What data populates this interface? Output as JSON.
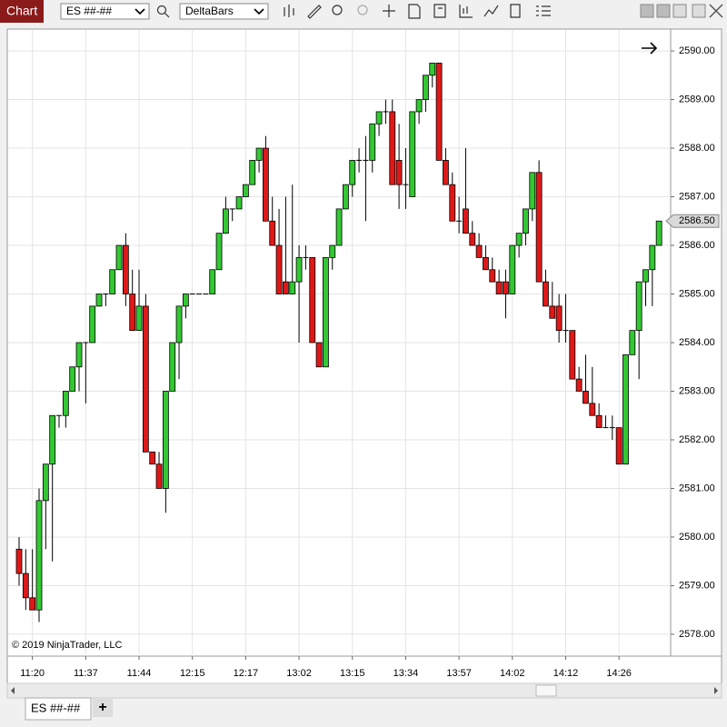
{
  "ui": {
    "window_title": "Chart",
    "instrument": "ES ##-##",
    "bar_type": "DeltaBars",
    "copyright": "© 2019 NinjaTrader, LLC",
    "tab": "ES ##-##",
    "add_tab": "+"
  },
  "chart_data": {
    "type": "candlestick",
    "categories": [
      null,
      null,
      "11:20",
      null,
      null,
      null,
      null,
      null,
      null,
      null,
      "11:37",
      null,
      null,
      null,
      null,
      null,
      null,
      null,
      "11:44",
      null,
      null,
      null,
      null,
      null,
      null,
      null,
      "12:15",
      null,
      null,
      null,
      null,
      null,
      null,
      null,
      "12:17",
      null,
      null,
      null,
      null,
      null,
      null,
      null,
      "13:02",
      null,
      null,
      null,
      null,
      null,
      null,
      null,
      "13:15",
      null,
      null,
      null,
      null,
      null,
      null,
      null,
      "13:34",
      null,
      null,
      null,
      null,
      null,
      null,
      null,
      "13:57",
      null,
      null,
      null,
      null,
      null,
      null,
      null,
      "14:02",
      null,
      null,
      null,
      null,
      null,
      null,
      null,
      "14:12",
      null,
      null,
      null,
      null,
      null,
      null,
      null,
      "14:26",
      null,
      null,
      null,
      null,
      null,
      null
    ],
    "open": [
      2579.75,
      2579.25,
      2578.75,
      2578.5,
      2580.75,
      2581.5,
      2582.5,
      2582.5,
      2583.0,
      2583.5,
      2584.0,
      2584.0,
      2584.75,
      2585.0,
      2585.0,
      2585.5,
      2586.0,
      2585.0,
      2584.25,
      2584.75,
      2581.75,
      2581.5,
      2581.0,
      2583.0,
      2584.0,
      2584.75,
      2585.0,
      2585.0,
      2585.0,
      2585.0,
      2585.5,
      2586.25,
      2586.75,
      2586.75,
      2587.0,
      2587.25,
      2587.75,
      2588.0,
      2586.5,
      2586.0,
      2585.25,
      2585.0,
      2585.25,
      2585.75,
      2585.75,
      2584.0,
      2583.5,
      2585.75,
      2586.0,
      2586.75,
      2587.25,
      2587.75,
      2587.75,
      2587.75,
      2588.5,
      2588.75,
      2588.75,
      2587.75,
      2587.25,
      2587.0,
      2588.75,
      2589.0,
      2589.5,
      2589.75,
      2587.75,
      2587.25,
      2586.5,
      2586.75,
      2586.25,
      2586.0,
      2585.75,
      2585.5,
      2585.25,
      2585.25,
      2585.0,
      2586.0,
      2586.25,
      2586.75,
      2587.5,
      2585.25,
      2584.75,
      2584.75,
      2584.25,
      2584.25,
      2583.25,
      2583.0,
      2582.75,
      2582.5,
      2582.25,
      2582.25,
      2582.25,
      2581.5,
      2583.75,
      2584.25,
      2585.25,
      2585.5,
      2586.0
    ],
    "high": [
      2580.0,
      2579.75,
      2579.75,
      2581.0,
      2581.5,
      2582.5,
      2582.5,
      2583.0,
      2583.5,
      2584.0,
      2584.0,
      2584.75,
      2585.0,
      2585.0,
      2585.5,
      2586.0,
      2586.25,
      2585.5,
      2585.5,
      2585.0,
      2581.75,
      2581.75,
      2583.0,
      2584.0,
      2584.75,
      2585.0,
      2585.0,
      2585.0,
      2585.0,
      2585.5,
      2586.25,
      2587.0,
      2586.75,
      2587.0,
      2587.25,
      2587.75,
      2588.0,
      2588.25,
      2587.0,
      2586.75,
      2587.0,
      2587.25,
      2586.0,
      2586.0,
      2585.75,
      2584.0,
      2585.75,
      2586.0,
      2586.75,
      2587.25,
      2587.75,
      2588.0,
      2588.25,
      2588.5,
      2588.75,
      2589.0,
      2589.0,
      2588.5,
      2588.0,
      2588.75,
      2589.0,
      2589.5,
      2589.75,
      2589.75,
      2588.0,
      2587.5,
      2587.0,
      2588.0,
      2586.5,
      2586.25,
      2586.0,
      2585.75,
      2585.5,
      2585.5,
      2586.0,
      2586.25,
      2586.75,
      2587.5,
      2587.75,
      2585.5,
      2585.25,
      2585.0,
      2585.0,
      2584.25,
      2583.5,
      2583.75,
      2583.5,
      2582.75,
      2582.5,
      2582.5,
      2582.25,
      2583.75,
      2584.25,
      2585.25,
      2585.5,
      2586.0,
      2586.5
    ],
    "low": [
      2579.0,
      2578.5,
      2578.5,
      2578.25,
      2579.75,
      2579.5,
      2582.25,
      2582.25,
      2583.0,
      2583.0,
      2582.75,
      2584.0,
      2584.75,
      2584.75,
      2585.0,
      2585.5,
      2584.75,
      2584.25,
      2584.25,
      2581.75,
      2581.5,
      2581.0,
      2580.5,
      2583.0,
      2583.25,
      2584.5,
      2585.0,
      2585.0,
      2585.0,
      2585.0,
      2585.5,
      2586.25,
      2586.5,
      2586.75,
      2587.0,
      2587.25,
      2587.5,
      2586.5,
      2586.0,
      2585.0,
      2585.0,
      2585.0,
      2584.0,
      2585.5,
      2584.0,
      2583.5,
      2583.5,
      2585.5,
      2586.0,
      2586.75,
      2587.0,
      2587.5,
      2586.5,
      2587.5,
      2588.25,
      2588.5,
      2587.25,
      2586.75,
      2586.75,
      2587.0,
      2588.5,
      2588.75,
      2589.25,
      2587.75,
      2587.25,
      2586.5,
      2586.25,
      2586.25,
      2586.0,
      2585.75,
      2585.5,
      2585.25,
      2585.0,
      2584.5,
      2585.0,
      2585.75,
      2586.0,
      2586.5,
      2585.25,
      2584.75,
      2584.5,
      2584.0,
      2584.0,
      2583.25,
      2583.0,
      2582.75,
      2582.5,
      2582.25,
      2582.25,
      2582.0,
      2581.5,
      2581.5,
      2583.75,
      2583.25,
      2584.75,
      2584.75,
      2586.0
    ],
    "close": [
      2579.25,
      2578.75,
      2578.5,
      2580.75,
      2581.5,
      2582.5,
      2582.5,
      2583.0,
      2583.5,
      2584.0,
      2584.0,
      2584.75,
      2585.0,
      2585.0,
      2585.5,
      2586.0,
      2585.0,
      2584.25,
      2584.75,
      2581.75,
      2581.5,
      2581.0,
      2583.0,
      2584.0,
      2584.75,
      2585.0,
      2585.0,
      2585.0,
      2585.0,
      2585.5,
      2586.25,
      2586.75,
      2586.75,
      2587.0,
      2587.25,
      2587.75,
      2588.0,
      2586.5,
      2586.0,
      2585.0,
      2585.0,
      2585.25,
      2585.75,
      2585.75,
      2584.0,
      2583.5,
      2585.75,
      2586.0,
      2586.75,
      2587.25,
      2587.75,
      2587.75,
      2587.75,
      2588.5,
      2588.75,
      2588.75,
      2587.25,
      2587.25,
      2587.25,
      2588.75,
      2589.0,
      2589.5,
      2589.75,
      2587.75,
      2587.25,
      2586.5,
      2586.5,
      2586.25,
      2586.0,
      2585.75,
      2585.5,
      2585.25,
      2585.0,
      2585.0,
      2586.0,
      2586.25,
      2586.75,
      2587.5,
      2585.25,
      2584.75,
      2584.5,
      2584.25,
      2584.25,
      2583.25,
      2583.0,
      2582.75,
      2582.5,
      2582.25,
      2582.25,
      2582.25,
      2581.5,
      2583.75,
      2584.25,
      2585.25,
      2585.5,
      2586.0,
      2586.5
    ],
    "up_color": "#32c832",
    "down_color": "#e01818",
    "ylim": [
      2577.55,
      2590.45
    ],
    "yticks": [
      {
        "value": 2578,
        "label": "2578.00"
      },
      {
        "value": 2579,
        "label": "2579.00"
      },
      {
        "value": 2580,
        "label": "2580.00"
      },
      {
        "value": 2581,
        "label": "2581.00"
      },
      {
        "value": 2582,
        "label": "2582.00"
      },
      {
        "value": 2583,
        "label": "2583.00"
      },
      {
        "value": 2584,
        "label": "2584.00"
      },
      {
        "value": 2585,
        "label": "2585.00"
      },
      {
        "value": 2586,
        "label": "2586.00"
      },
      {
        "value": 2587,
        "label": "2587.00"
      },
      {
        "value": 2588,
        "label": "2588.00"
      },
      {
        "value": 2589,
        "label": "2589.00"
      },
      {
        "value": 2590,
        "label": "2590.00"
      }
    ],
    "current_price": {
      "value": 2586.5,
      "label": "2586.50"
    },
    "grid": true
  }
}
